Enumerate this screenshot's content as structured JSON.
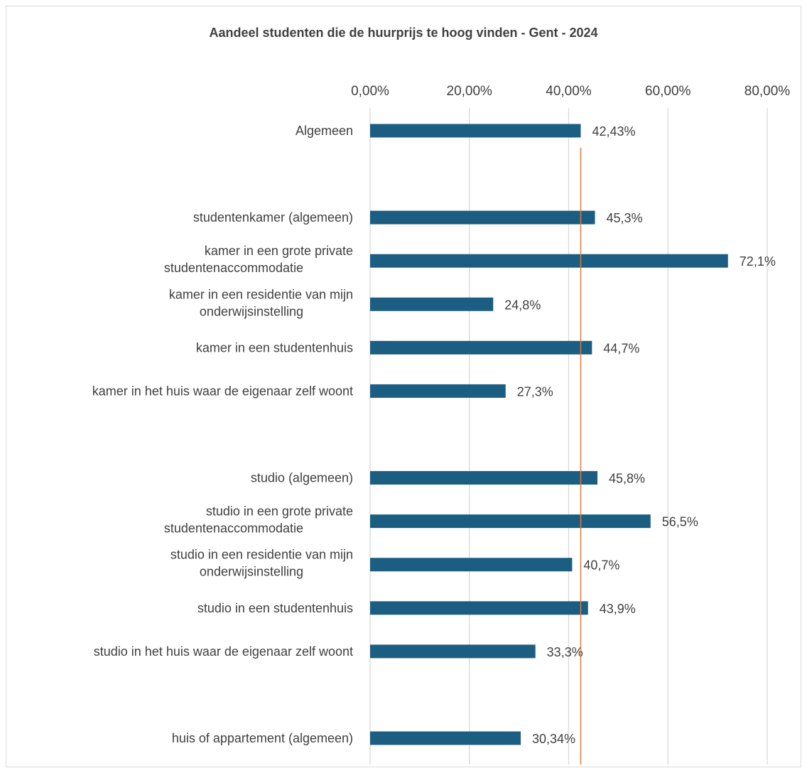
{
  "chart_data": {
    "type": "bar",
    "orientation": "horizontal",
    "title": "Aandeel studenten die de huurprijs te hoog vinden - Gent - 2024",
    "xlabel": "",
    "ylabel": "",
    "xlim": [
      0,
      0.8
    ],
    "x_ticks": [
      0,
      0.2,
      0.4,
      0.6,
      0.8
    ],
    "x_tick_labels": [
      "0,00%",
      "20,00%",
      "40,00%",
      "60,00%",
      "80,00%"
    ],
    "x_axis_position": "top",
    "grid": true,
    "bar_color": "#1b5e82",
    "reference_line": {
      "value": 0.4243,
      "color": "#e07b39"
    },
    "categories": [
      {
        "lines": [
          "Algemeen"
        ],
        "value": 0.4243,
        "label": "42,43%",
        "slot": 0
      },
      {
        "lines": [
          "studentenkamer (algemeen)"
        ],
        "value": 0.453,
        "label": "45,3%",
        "slot": 2
      },
      {
        "lines": [
          "kamer in een grote private",
          "studentenaccommodatie"
        ],
        "value": 0.721,
        "label": "72,1%",
        "slot": 3
      },
      {
        "lines": [
          "kamer in een residentie van mijn",
          "onderwijsinstelling"
        ],
        "value": 0.248,
        "label": "24,8%",
        "slot": 4
      },
      {
        "lines": [
          "kamer in een studentenhuis"
        ],
        "value": 0.447,
        "label": "44,7%",
        "slot": 5
      },
      {
        "lines": [
          "kamer in het huis waar de eigenaar zelf woont"
        ],
        "value": 0.273,
        "label": "27,3%",
        "slot": 6
      },
      {
        "lines": [
          "studio (algemeen)"
        ],
        "value": 0.458,
        "label": "45,8%",
        "slot": 8
      },
      {
        "lines": [
          "studio in een grote private",
          "studentenaccommodatie"
        ],
        "value": 0.565,
        "label": "56,5%",
        "slot": 9
      },
      {
        "lines": [
          "studio in een residentie van mijn",
          "onderwijsinstelling"
        ],
        "value": 0.407,
        "label": "40,7%",
        "slot": 10
      },
      {
        "lines": [
          "studio in een studentenhuis"
        ],
        "value": 0.439,
        "label": "43,9%",
        "slot": 11
      },
      {
        "lines": [
          "studio in het huis waar de eigenaar zelf woont"
        ],
        "value": 0.333,
        "label": "33,3%",
        "slot": 12
      },
      {
        "lines": [
          "huis of appartement (algemeen)"
        ],
        "value": 0.3034,
        "label": "30,34%",
        "slot": 14
      }
    ]
  }
}
